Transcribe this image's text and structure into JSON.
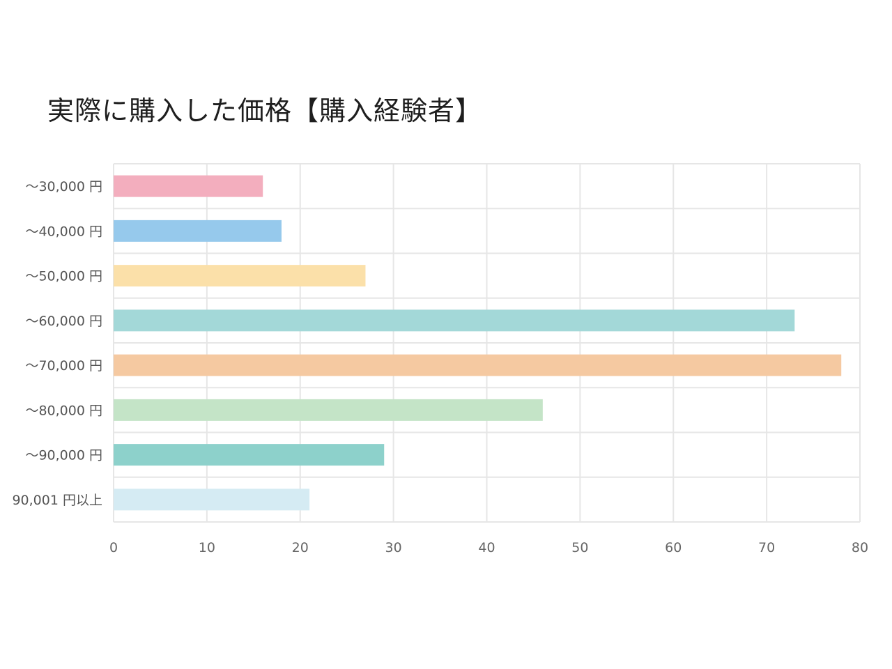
{
  "chart_data": {
    "type": "bar",
    "orientation": "horizontal",
    "title": "実際に購入した価格【購入経験者】",
    "categories": [
      "〜30,000 円",
      "〜40,000 円",
      "〜50,000 円",
      "〜60,000 円",
      "〜70,000 円",
      "〜80,000 円",
      "〜90,000 円",
      "90,001 円以上"
    ],
    "values": [
      16,
      18,
      27,
      73,
      78,
      46,
      29,
      21
    ],
    "colors": [
      "#f3aebe",
      "#96c9ec",
      "#fbe0a9",
      "#a3d8d8",
      "#f5c9a1",
      "#c4e4c7",
      "#8dd1cb",
      "#d5ebf3"
    ],
    "xlim": [
      0,
      80
    ],
    "xticks": [
      "0",
      "10",
      "20",
      "30",
      "40",
      "50",
      "60",
      "70",
      "80"
    ],
    "xlabel": "",
    "ylabel": "",
    "grid": true,
    "legend": "none"
  }
}
